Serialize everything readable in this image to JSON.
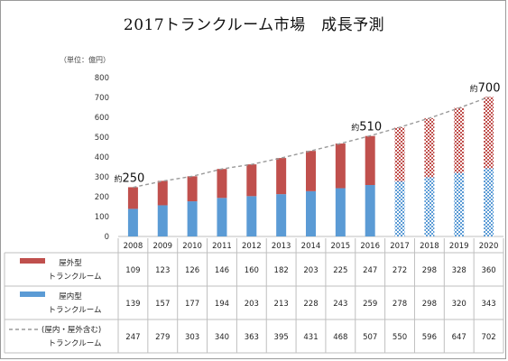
{
  "title": "2017トランクルーム市場　成長予測",
  "unit_label": "（単位：億円）",
  "chart_data": {
    "type": "bar",
    "stacked": true,
    "categories": [
      "2008",
      "2009",
      "2010",
      "2011",
      "2012",
      "2013",
      "2014",
      "2015",
      "2016",
      "2017",
      "2018",
      "2019",
      "2020"
    ],
    "forecast_from": "2017",
    "ylim": [
      0,
      800
    ],
    "yticks": [
      0,
      100,
      200,
      300,
      400,
      500,
      600,
      700,
      800
    ],
    "grid": false,
    "series": [
      {
        "name_line1": "屋内型",
        "name_line2": "トランクルーム",
        "color": "#5b9bd5",
        "values": [
          139,
          157,
          177,
          194,
          203,
          213,
          228,
          243,
          259,
          278,
          298,
          320,
          343
        ]
      },
      {
        "name_line1": "屋外型",
        "name_line2": "トランクルーム",
        "color": "#c0504d",
        "values": [
          109,
          123,
          126,
          146,
          160,
          182,
          203,
          225,
          247,
          272,
          298,
          328,
          360
        ]
      }
    ],
    "total": {
      "name_line1": "(屋内・屋外含む)",
      "name_line2": "トランクルーム",
      "color": "#9a9a9a",
      "values": [
        247,
        279,
        303,
        340,
        363,
        395,
        431,
        468,
        507,
        550,
        596,
        647,
        702
      ]
    },
    "annotations": [
      {
        "category": "2008",
        "prefix": "約",
        "value": "250"
      },
      {
        "category": "2016",
        "prefix": "約",
        "value": "510"
      },
      {
        "category": "2020",
        "prefix": "約",
        "value": "700"
      }
    ],
    "table_rows": [
      {
        "key": "outdoor",
        "name_line1": "屋外型",
        "name_line2": "トランクルーム",
        "values": [
          "109",
          "123",
          "126",
          "146",
          "160",
          "182",
          "203",
          "225",
          "247",
          "272",
          "298",
          "328",
          "360"
        ]
      },
      {
        "key": "indoor",
        "name_line1": "屋内型",
        "name_line2": "トランクルーム",
        "values": [
          "139",
          "157",
          "177",
          "194",
          "203",
          "213",
          "228",
          "243",
          "259",
          "278",
          "298",
          "320",
          "343"
        ]
      },
      {
        "key": "total",
        "name_line1": "(屋内・屋外含む)",
        "name_line2": "トランクルーム",
        "values": [
          "247",
          "279",
          "303",
          "340",
          "363",
          "395",
          "431",
          "468",
          "507",
          "550",
          "596",
          "647",
          "702"
        ]
      }
    ]
  }
}
